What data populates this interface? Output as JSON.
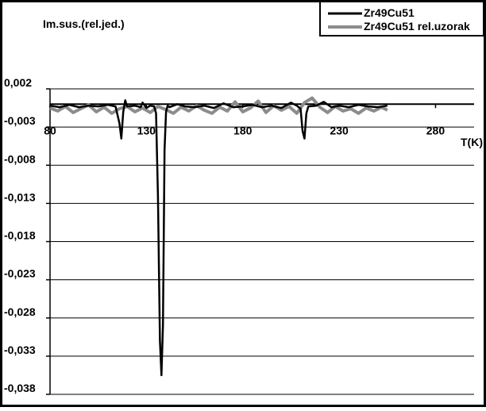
{
  "chart_data": {
    "type": "line",
    "ylabel": "Im.sus.(rel.jed.)",
    "xlabel": "T(K)",
    "xlim": [
      80,
      300
    ],
    "ylim": [
      -0.038,
      0.002
    ],
    "x_ticks": [
      80,
      130,
      180,
      230,
      280
    ],
    "x_tick_labels": [
      "80",
      "130",
      "180",
      "230",
      "280"
    ],
    "y_ticks": [
      0.002,
      -0.003,
      -0.008,
      -0.013,
      -0.018,
      -0.023,
      -0.028,
      -0.033,
      -0.038
    ],
    "y_tick_labels": [
      "0,002",
      "-0,003",
      "-0,008",
      "-0,013",
      "-0,018",
      "-0,023",
      "-0,028",
      "-0,033",
      "-0,038"
    ],
    "grid": "horizontal",
    "legend_position": "top-right",
    "reference_line_y": 0,
    "series": [
      {
        "name": "Zr49Cu51",
        "color": "#000000",
        "x": [
          80,
          85,
          90,
          95,
          100,
          105,
          110,
          114,
          116,
          117,
          118,
          119,
          120,
          124,
          127,
          128,
          130,
          132,
          134,
          135,
          136,
          137,
          137.8,
          138.6,
          139.4,
          140.2,
          141,
          142,
          146,
          150,
          155,
          160,
          165,
          170,
          175,
          180,
          185,
          190,
          195,
          200,
          205,
          208,
          210,
          211,
          212,
          213,
          214,
          218,
          222,
          226,
          230,
          235,
          240,
          245,
          250,
          255
        ],
        "y": [
          -0.0002,
          -0.0004,
          -0.0001,
          -0.0004,
          -0.0002,
          -0.0003,
          -0.0001,
          -0.0003,
          -0.0025,
          -0.0045,
          -0.001,
          0.0005,
          -0.0003,
          -0.0002,
          -0.0004,
          0.0002,
          -0.0005,
          -0.0002,
          -0.0003,
          -0.0012,
          -0.012,
          -0.031,
          -0.0355,
          -0.029,
          -0.006,
          -0.001,
          -0.0002,
          -0.0004,
          0.0,
          -0.0003,
          -0.0004,
          -0.0002,
          -0.0005,
          0.0001,
          -0.0004,
          -0.0003,
          -0.0001,
          -0.0004,
          -0.0002,
          -0.0005,
          0.0002,
          -0.0002,
          -0.0006,
          -0.0035,
          -0.0045,
          -0.0012,
          -0.0003,
          -0.0002,
          0.0003,
          -0.0004,
          -0.0002,
          -0.0004,
          -0.0001,
          -0.0003,
          -0.0004,
          -0.0002
        ]
      },
      {
        "name": "Zr49Cu51 rel.uzorak",
        "color": "#8c8c8c",
        "x": [
          80,
          84,
          88,
          92,
          96,
          100,
          104,
          108,
          112,
          116,
          120,
          124,
          128,
          132,
          136,
          140,
          144,
          148,
          152,
          156,
          160,
          164,
          168,
          172,
          176,
          180,
          184,
          188,
          192,
          196,
          200,
          204,
          208,
          212,
          216,
          220,
          224,
          228,
          232,
          236,
          240,
          244,
          248,
          252,
          255
        ],
        "y": [
          -0.0005,
          -0.0009,
          -0.0003,
          -0.0011,
          -0.0006,
          -0.0001,
          -0.001,
          -0.0004,
          -0.0012,
          -0.0006,
          -0.0003,
          -0.001,
          -0.0005,
          -0.0011,
          -0.0003,
          -0.0007,
          -0.0012,
          -0.0004,
          -0.0009,
          -0.0002,
          -0.0008,
          -0.0012,
          -0.0004,
          -0.0009,
          0.0003,
          -0.001,
          -0.0005,
          0.0004,
          -0.0011,
          -0.0002,
          -0.0008,
          -0.0003,
          -0.0012,
          0.0002,
          0.0008,
          -0.0004,
          -0.0011,
          -0.0003,
          -0.0009,
          -0.0006,
          -0.0012,
          -0.0005,
          -0.0009,
          -0.0004,
          -0.0008
        ]
      }
    ]
  }
}
